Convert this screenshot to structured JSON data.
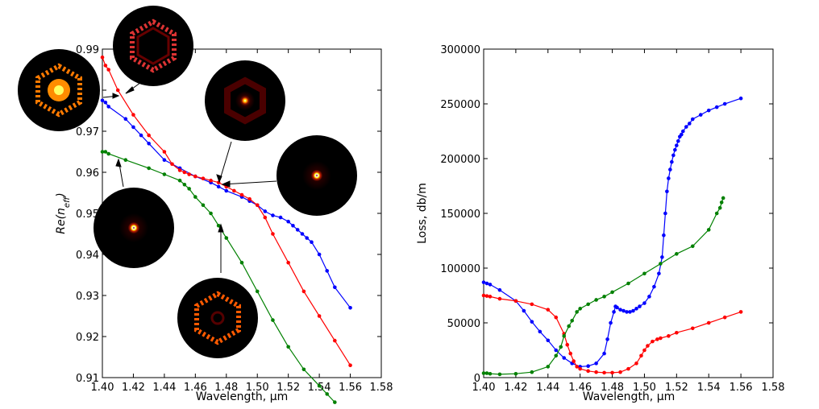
{
  "chart_data": [
    {
      "type": "line",
      "xlabel": "Wavelength, μm",
      "ylabel": "Re(n_eff)",
      "xlim": [
        1.4,
        1.58
      ],
      "ylim": [
        0.91,
        0.99
      ],
      "xticks": [
        "1.40",
        "1.42",
        "1.44",
        "1.46",
        "1.48",
        "1.50",
        "1.52",
        "1.54",
        "1.56",
        "1.58"
      ],
      "yticks": [
        "0.91",
        "0.92",
        "0.93",
        "0.94",
        "0.95",
        "0.96",
        "0.97",
        "0.98",
        "0.99"
      ],
      "grid": false,
      "series": [
        {
          "color": "#0000ff",
          "x": [
            1.4,
            1.402,
            1.404,
            1.415,
            1.42,
            1.425,
            1.43,
            1.44,
            1.45,
            1.46,
            1.47,
            1.475,
            1.48,
            1.49,
            1.495,
            1.5,
            1.505,
            1.51,
            1.515,
            1.52,
            1.523,
            1.526,
            1.529,
            1.532,
            1.535,
            1.54,
            1.545,
            1.55,
            1.56
          ],
          "y": [
            0.9775,
            0.977,
            0.976,
            0.973,
            0.971,
            0.969,
            0.967,
            0.963,
            0.961,
            0.959,
            0.9575,
            0.9565,
            0.9555,
            0.954,
            0.953,
            0.952,
            0.9505,
            0.9495,
            0.949,
            0.948,
            0.947,
            0.946,
            0.945,
            0.944,
            0.943,
            0.94,
            0.936,
            0.932,
            0.927
          ]
        },
        {
          "color": "#ff0000",
          "x": [
            1.4,
            1.402,
            1.404,
            1.41,
            1.42,
            1.43,
            1.44,
            1.445,
            1.45,
            1.453,
            1.456,
            1.46,
            1.465,
            1.47,
            1.475,
            1.48,
            1.485,
            1.49,
            1.495,
            1.5,
            1.505,
            1.51,
            1.52,
            1.53,
            1.54,
            1.55,
            1.56
          ],
          "y": [
            0.988,
            0.986,
            0.985,
            0.98,
            0.974,
            0.969,
            0.965,
            0.962,
            0.9605,
            0.96,
            0.9595,
            0.959,
            0.9585,
            0.958,
            0.9575,
            0.9565,
            0.9555,
            0.9545,
            0.9535,
            0.952,
            0.949,
            0.945,
            0.938,
            0.931,
            0.925,
            0.919,
            0.913
          ]
        },
        {
          "color": "#008000",
          "x": [
            1.4,
            1.402,
            1.404,
            1.415,
            1.43,
            1.44,
            1.45,
            1.453,
            1.456,
            1.46,
            1.465,
            1.47,
            1.475,
            1.48,
            1.49,
            1.5,
            1.51,
            1.52,
            1.53,
            1.54,
            1.545,
            1.55
          ],
          "y": [
            0.965,
            0.965,
            0.9645,
            0.963,
            0.961,
            0.9595,
            0.958,
            0.957,
            0.956,
            0.954,
            0.952,
            0.95,
            0.947,
            0.944,
            0.938,
            0.931,
            0.924,
            0.9175,
            0.912,
            0.908,
            0.906,
            0.904
          ]
        }
      ]
    },
    {
      "type": "line",
      "xlabel": "Wavelength, μm",
      "ylabel": "Loss, db/m",
      "xlim": [
        1.4,
        1.58
      ],
      "ylim": [
        0,
        300000
      ],
      "xticks": [
        "1.40",
        "1.42",
        "1.44",
        "1.46",
        "1.48",
        "1.50",
        "1.52",
        "1.54",
        "1.56",
        "1.58"
      ],
      "yticks": [
        "0",
        "50000",
        "100000",
        "150000",
        "200000",
        "250000",
        "300000"
      ],
      "grid": false,
      "series": [
        {
          "color": "#0000ff",
          "x": [
            1.4,
            1.402,
            1.404,
            1.41,
            1.42,
            1.425,
            1.43,
            1.435,
            1.44,
            1.445,
            1.45,
            1.455,
            1.46,
            1.465,
            1.47,
            1.475,
            1.477,
            1.479,
            1.481,
            1.482,
            1.483,
            1.485,
            1.487,
            1.489,
            1.491,
            1.493,
            1.495,
            1.497,
            1.5,
            1.503,
            1.506,
            1.509,
            1.511,
            1.512,
            1.513,
            1.514,
            1.515,
            1.516,
            1.517,
            1.518,
            1.519,
            1.52,
            1.521,
            1.522,
            1.523,
            1.524,
            1.526,
            1.528,
            1.53,
            1.535,
            1.54,
            1.545,
            1.55,
            1.56
          ],
          "y": [
            87000,
            86000,
            85000,
            80000,
            70000,
            61000,
            51000,
            42000,
            34000,
            25000,
            18000,
            13000,
            10000,
            10500,
            13000,
            22000,
            35000,
            50000,
            60000,
            65000,
            64000,
            62000,
            61000,
            60000,
            60000,
            61000,
            63000,
            65000,
            68000,
            74000,
            83000,
            95000,
            110000,
            130000,
            150000,
            170000,
            182000,
            190000,
            197000,
            203000,
            208000,
            212000,
            216000,
            220000,
            222000,
            225000,
            229000,
            232000,
            236000,
            240000,
            244000,
            247000,
            250000,
            255000
          ]
        },
        {
          "color": "#ff0000",
          "x": [
            1.4,
            1.402,
            1.404,
            1.41,
            1.42,
            1.43,
            1.44,
            1.445,
            1.45,
            1.452,
            1.454,
            1.456,
            1.458,
            1.46,
            1.465,
            1.47,
            1.475,
            1.48,
            1.485,
            1.49,
            1.495,
            1.498,
            1.5,
            1.502,
            1.505,
            1.508,
            1.51,
            1.515,
            1.52,
            1.53,
            1.54,
            1.55,
            1.56
          ],
          "y": [
            75000,
            74500,
            74000,
            72000,
            70000,
            67000,
            62000,
            55000,
            40000,
            30000,
            22000,
            15000,
            10000,
            8000,
            6000,
            5000,
            4500,
            4500,
            5000,
            8000,
            13000,
            20000,
            25000,
            29000,
            33000,
            35000,
            36000,
            38000,
            41000,
            45000,
            50000,
            55000,
            60000
          ]
        },
        {
          "color": "#008000",
          "x": [
            1.4,
            1.402,
            1.404,
            1.41,
            1.42,
            1.43,
            1.44,
            1.445,
            1.448,
            1.45,
            1.453,
            1.455,
            1.458,
            1.46,
            1.465,
            1.47,
            1.475,
            1.48,
            1.49,
            1.5,
            1.51,
            1.52,
            1.53,
            1.54,
            1.545,
            1.547,
            1.548,
            1.549
          ],
          "y": [
            4000,
            4000,
            3500,
            3000,
            3500,
            5000,
            10000,
            20000,
            28000,
            38000,
            47000,
            52000,
            60000,
            63000,
            67000,
            71000,
            74000,
            78000,
            86000,
            95000,
            104000,
            113000,
            120000,
            135000,
            150000,
            155000,
            160000,
            164000
          ]
        }
      ]
    }
  ]
}
